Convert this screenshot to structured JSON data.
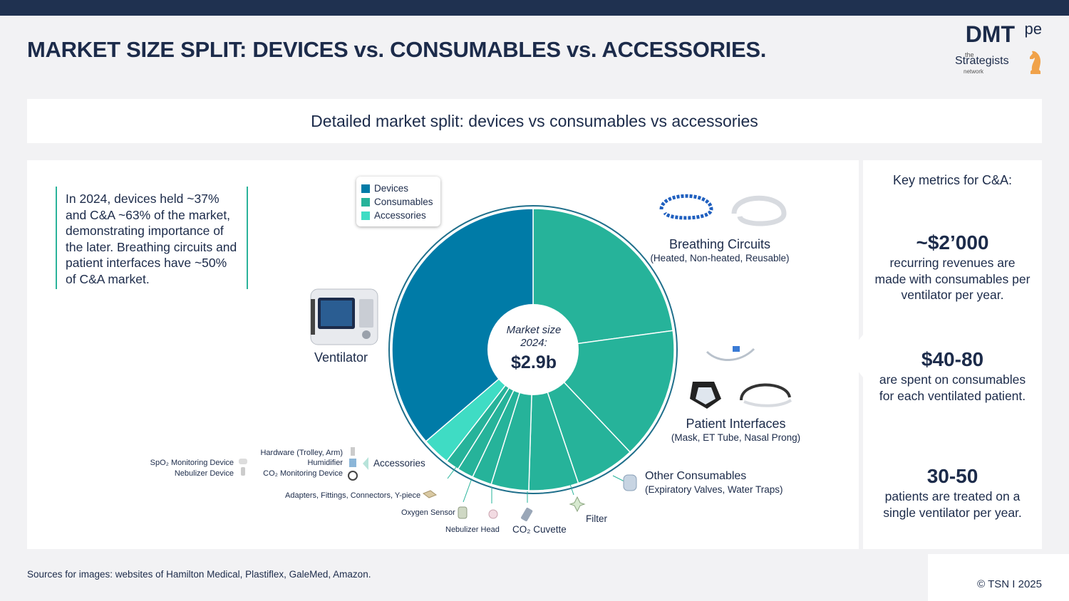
{
  "header": {
    "title": "MARKET SIZE SPLIT: DEVICES vs. CONSUMABLES vs. ACCESSORIES.",
    "logo_main": "DMT",
    "logo_sup": "pe",
    "logo_the": "the",
    "logo_strategists": "Strategists",
    "logo_network": "network"
  },
  "subtitle": "Detailed market split: devices vs consumables vs accessories",
  "callout": "In 2024, devices held ~37% and C&A ~63% of the market, demonstrating importance of the later. Breathing circuits and patient interfaces have ~50% of C&A market.",
  "center": {
    "line1": "Market size",
    "line2": "2024:",
    "value": "$2.9b"
  },
  "labels": {
    "ventilator": "Ventilator",
    "breathing_title": "Breathing Circuits",
    "breathing_sub": "(Heated, Non-heated, Reusable)",
    "patient_title": "Patient Interfaces",
    "patient_sub": "(Mask, ET Tube, Nasal Prong)",
    "other_title": "Other Consumables",
    "other_sub": "(Expiratory Valves, Water Traps)",
    "filter": "Filter",
    "cuvette": "CO₂ Cuvette",
    "nebulizer_head": "Nebulizer Head",
    "oxygen_sensor": "Oxygen Sensor",
    "adapters": "Adapters, Fittings, Connectors, Y-piece",
    "accessories": "Accessories",
    "acc_hardware": "Hardware (Trolley, Arm)",
    "acc_humidifier": "Humidifier",
    "acc_co2": "CO₂ Monitoring Device",
    "acc_spo2": "SpO₂ Monitoring Device",
    "acc_nebulizer": "Nebulizer Device"
  },
  "side": {
    "heading": "Key metrics for C&A:",
    "metrics": [
      {
        "value": "~$2’000",
        "text": "recurring revenues are made with consumables per ventilator per year."
      },
      {
        "value": "$40-80",
        "text": "are spent on consumables for each ventilated patient."
      },
      {
        "value": "30-50",
        "text": "patients are treated on a single ventilator per year."
      }
    ]
  },
  "footer": {
    "sources": "Sources for images: websites of Hamilton Medical, Plastiflex, GaleMed, Amazon.",
    "copyright": "© TSN  I  2025"
  },
  "colors": {
    "devices": "#007ba7",
    "consumables": "#26b39a",
    "accessories": "#3fdcc4",
    "navy": "#1c2b4a"
  },
  "chart_data": {
    "type": "pie",
    "title": "",
    "total": "$2.9b",
    "categories": [
      "Devices",
      "Consumables",
      "Accessories"
    ],
    "slices": [
      {
        "label": "Ventilator",
        "group": "Devices",
        "value": 37
      },
      {
        "label": "Breathing Circuits",
        "group": "Consumables",
        "value": 23.3
      },
      {
        "label": "Patient Interfaces",
        "group": "Consumables",
        "value": 15.4
      },
      {
        "label": "Other Consumables",
        "group": "Consumables",
        "value": 7.0
      },
      {
        "label": "Filter",
        "group": "Consumables",
        "value": 5.8
      },
      {
        "label": "CO₂ Cuvette",
        "group": "Consumables",
        "value": 4.4
      },
      {
        "label": "Nebulizer Head",
        "group": "Consumables",
        "value": 2.3
      },
      {
        "label": "Oxygen Sensor",
        "group": "Consumables",
        "value": 1.9
      },
      {
        "label": "Adapters, Fittings, Connectors, Y-piece",
        "group": "Consumables",
        "value": 1.6
      },
      {
        "label": "Accessories",
        "group": "Accessories",
        "value": 3.3
      }
    ],
    "legend": [
      "Devices",
      "Consumables",
      "Accessories"
    ],
    "legend_position": "top-left"
  }
}
